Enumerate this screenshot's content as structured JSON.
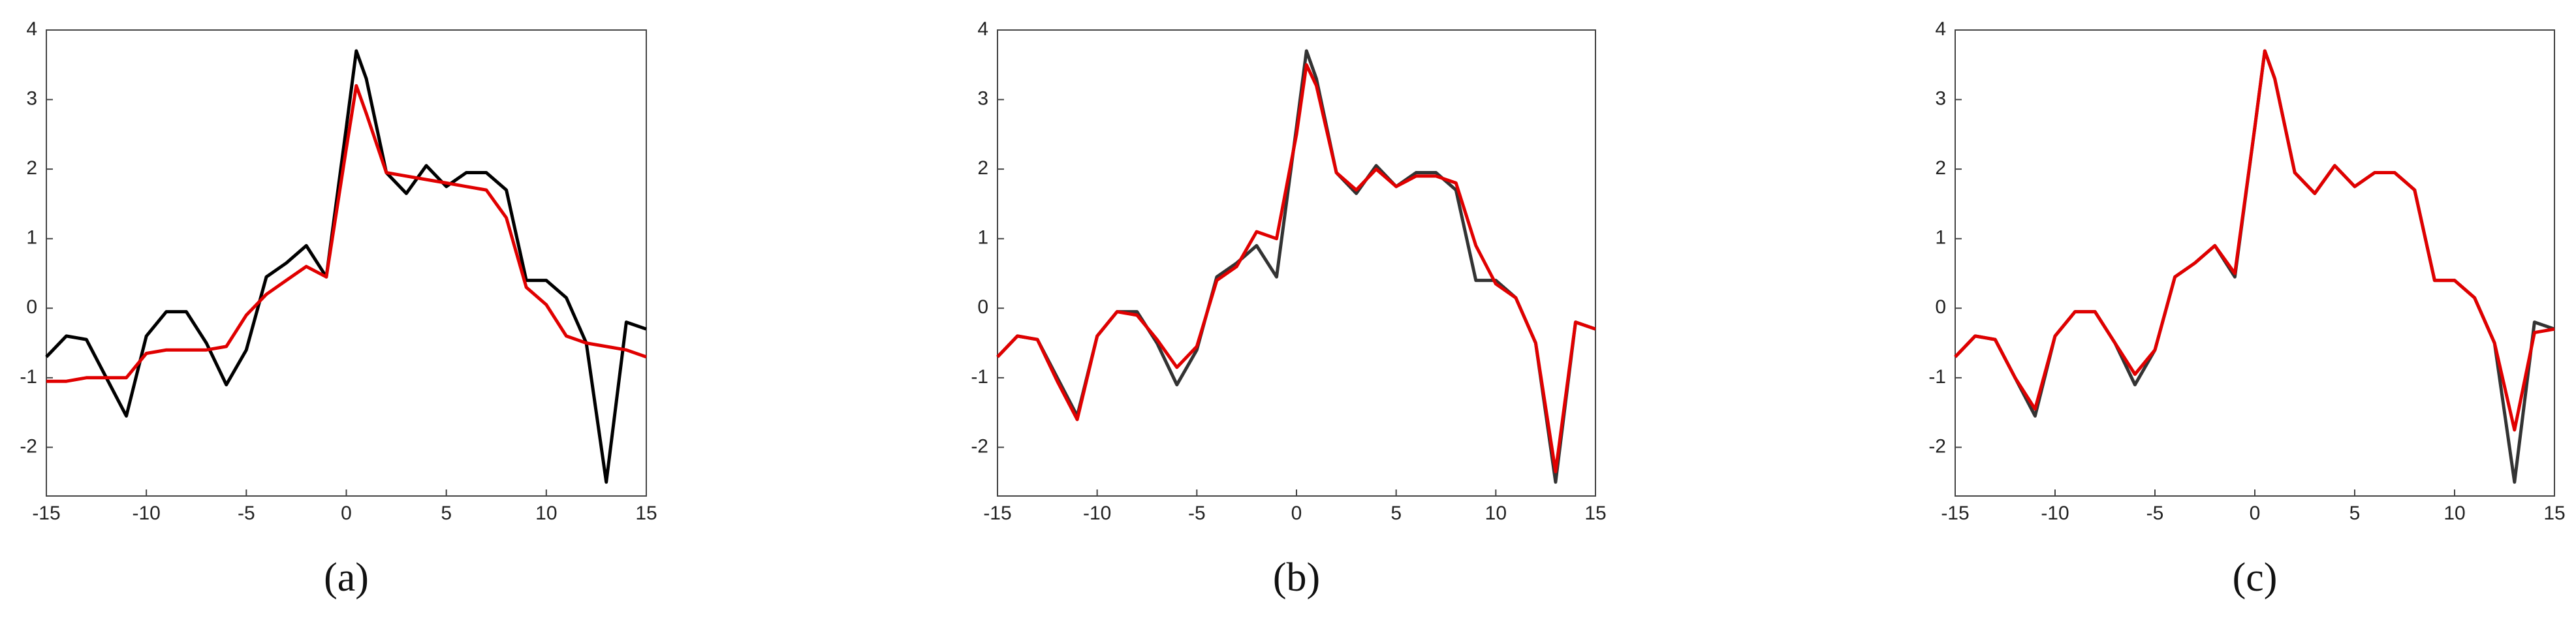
{
  "chart_data": [
    {
      "type": "line",
      "caption": "(a)",
      "x": [
        -15,
        -14,
        -13,
        -12,
        -11,
        -10,
        -9,
        -8,
        -7,
        -6,
        -5,
        -4,
        -3,
        -2,
        -1,
        0,
        0.5,
        1,
        2,
        3,
        4,
        5,
        6,
        7,
        8,
        9,
        10,
        11,
        12,
        13,
        14,
        15
      ],
      "series": [
        {
          "color": "#000000",
          "values": [
            -0.7,
            -0.4,
            -0.45,
            -1.0,
            -1.55,
            -0.4,
            -0.05,
            -0.05,
            -0.5,
            -1.1,
            -0.6,
            0.45,
            0.65,
            0.9,
            0.45,
            2.6,
            3.7,
            3.3,
            1.95,
            1.65,
            2.05,
            1.75,
            1.95,
            1.95,
            1.7,
            0.4,
            0.4,
            0.15,
            -0.5,
            -2.5,
            -0.2,
            -0.3
          ]
        },
        {
          "color": "#e00000",
          "values": [
            -1.05,
            -1.05,
            -1.0,
            -1.0,
            -1.0,
            -0.65,
            -0.6,
            -0.6,
            -0.6,
            -0.55,
            -0.1,
            0.2,
            0.4,
            0.6,
            0.45,
            2.3,
            3.2,
            2.8,
            1.95,
            1.9,
            1.85,
            1.8,
            1.75,
            1.7,
            1.3,
            0.3,
            0.05,
            -0.4,
            -0.5,
            -0.55,
            -0.6,
            -0.7
          ]
        }
      ],
      "xlim": [
        -15,
        15
      ],
      "xticks": [
        -15,
        -10,
        -5,
        0,
        5,
        10,
        15
      ],
      "ylim": [
        -2.7,
        4
      ],
      "yticks": [
        -2,
        -1,
        0,
        1,
        2,
        3,
        4
      ]
    },
    {
      "type": "line",
      "caption": "(b)",
      "x": [
        -15,
        -14,
        -13,
        -12,
        -11,
        -10,
        -9,
        -8,
        -7,
        -6,
        -5,
        -4,
        -3,
        -2,
        -1,
        0,
        0.5,
        1,
        2,
        3,
        4,
        5,
        6,
        7,
        8,
        9,
        10,
        11,
        12,
        13,
        14,
        15
      ],
      "series": [
        {
          "color": "#333333",
          "values": [
            -0.7,
            -0.4,
            -0.45,
            -1.0,
            -1.55,
            -0.4,
            -0.05,
            -0.05,
            -0.5,
            -1.1,
            -0.6,
            0.45,
            0.65,
            0.9,
            0.45,
            2.6,
            3.7,
            3.3,
            1.95,
            1.65,
            2.05,
            1.75,
            1.95,
            1.95,
            1.7,
            0.4,
            0.4,
            0.15,
            -0.5,
            -2.5,
            -0.2,
            -0.3
          ]
        },
        {
          "color": "#e00000",
          "values": [
            -0.7,
            -0.4,
            -0.45,
            -1.05,
            -1.6,
            -0.4,
            -0.05,
            -0.1,
            -0.45,
            -0.85,
            -0.55,
            0.4,
            0.6,
            1.1,
            1.0,
            2.5,
            3.5,
            3.2,
            1.95,
            1.7,
            2.0,
            1.75,
            1.9,
            1.9,
            1.8,
            0.9,
            0.35,
            0.15,
            -0.5,
            -2.35,
            -0.2,
            -0.3
          ]
        }
      ],
      "xlim": [
        -15,
        15
      ],
      "xticks": [
        -15,
        -10,
        -5,
        0,
        5,
        10,
        15
      ],
      "ylim": [
        -2.7,
        4
      ],
      "yticks": [
        -2,
        -1,
        0,
        1,
        2,
        3,
        4
      ]
    },
    {
      "type": "line",
      "caption": "(c)",
      "x": [
        -15,
        -14,
        -13,
        -12,
        -11,
        -10,
        -9,
        -8,
        -7,
        -6,
        -5,
        -4,
        -3,
        -2,
        -1,
        0,
        0.5,
        1,
        2,
        3,
        4,
        5,
        6,
        7,
        8,
        9,
        10,
        11,
        12,
        13,
        14,
        15
      ],
      "series": [
        {
          "color": "#333333",
          "values": [
            -0.7,
            -0.4,
            -0.45,
            -1.0,
            -1.55,
            -0.4,
            -0.05,
            -0.05,
            -0.5,
            -1.1,
            -0.6,
            0.45,
            0.65,
            0.9,
            0.45,
            2.6,
            3.7,
            3.3,
            1.95,
            1.65,
            2.05,
            1.75,
            1.95,
            1.95,
            1.7,
            0.4,
            0.4,
            0.15,
            -0.5,
            -2.5,
            -0.2,
            -0.3
          ]
        },
        {
          "color": "#e00000",
          "values": [
            -0.7,
            -0.4,
            -0.45,
            -1.0,
            -1.45,
            -0.4,
            -0.05,
            -0.05,
            -0.5,
            -0.95,
            -0.6,
            0.45,
            0.65,
            0.9,
            0.5,
            2.6,
            3.7,
            3.3,
            1.95,
            1.65,
            2.05,
            1.75,
            1.95,
            1.95,
            1.7,
            0.4,
            0.4,
            0.15,
            -0.5,
            -1.75,
            -0.35,
            -0.3
          ]
        }
      ],
      "xlim": [
        -15,
        15
      ],
      "xticks": [
        -15,
        -10,
        -5,
        0,
        5,
        10,
        15
      ],
      "ylim": [
        -2.7,
        4
      ],
      "yticks": [
        -2,
        -1,
        0,
        1,
        2,
        3,
        4
      ]
    }
  ]
}
